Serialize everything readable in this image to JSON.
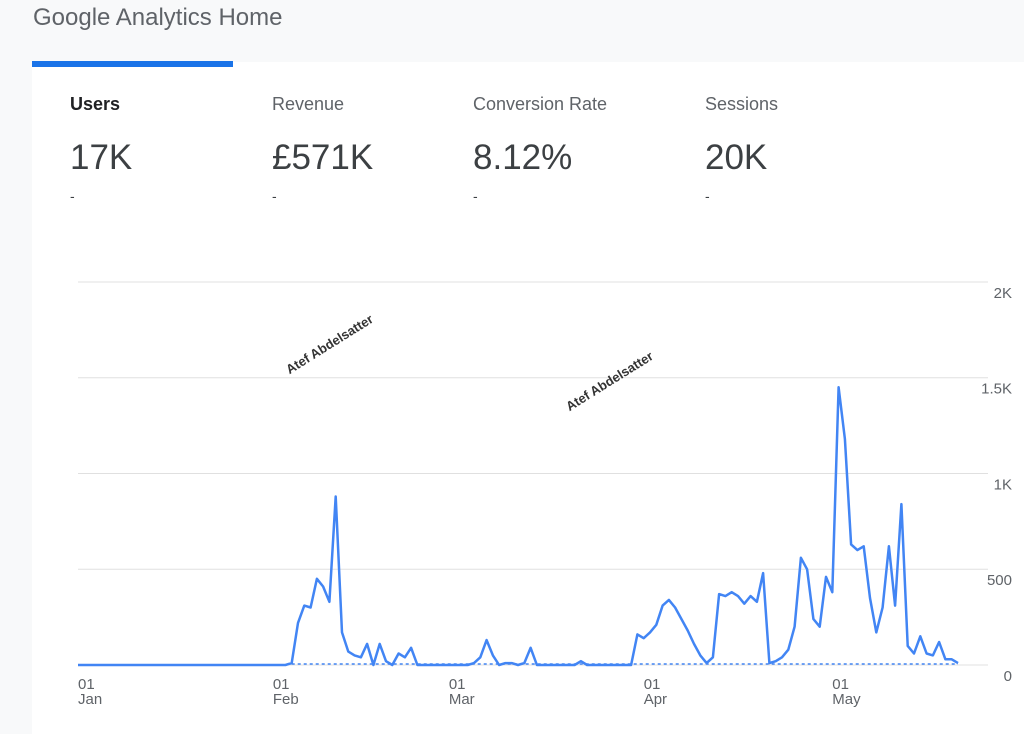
{
  "header": {
    "title": "Google Analytics Home"
  },
  "metrics": [
    {
      "label": "Users",
      "value": "17K",
      "change": "-"
    },
    {
      "label": "Revenue",
      "value": "£571K",
      "change": "-"
    },
    {
      "label": "Conversion Rate",
      "value": "8.12%",
      "change": "-"
    },
    {
      "label": "Sessions",
      "value": "20K",
      "change": "-"
    }
  ],
  "watermarks": [
    "Atef Abdelsatter",
    "Atef Abdelsatter"
  ],
  "chart_data": {
    "type": "line",
    "color": "#4285f4",
    "grid": true,
    "ylim": [
      0,
      2000
    ],
    "yticks": [
      0,
      500,
      {
        "value": 1000,
        "label": "1K"
      },
      {
        "value": 1500,
        "label": "1.5K"
      },
      {
        "value": 2000,
        "label": "2K"
      }
    ],
    "categories": [
      "01 Jan",
      null,
      null,
      null,
      null,
      null,
      null,
      null,
      null,
      null,
      null,
      null,
      null,
      null,
      null,
      null,
      null,
      null,
      null,
      null,
      null,
      null,
      null,
      null,
      null,
      null,
      null,
      null,
      null,
      null,
      null,
      "01 Feb",
      null,
      null,
      null,
      null,
      null,
      null,
      null,
      null,
      null,
      null,
      null,
      null,
      null,
      null,
      null,
      null,
      null,
      null,
      null,
      null,
      null,
      null,
      null,
      null,
      null,
      null,
      null,
      "01 Mar",
      null,
      null,
      null,
      null,
      null,
      null,
      null,
      null,
      null,
      null,
      null,
      null,
      null,
      null,
      null,
      null,
      null,
      null,
      null,
      null,
      null,
      null,
      null,
      null,
      null,
      null,
      null,
      null,
      null,
      null,
      "01 Apr",
      null,
      null,
      null,
      null,
      null,
      null,
      null,
      null,
      null,
      null,
      null,
      null,
      null,
      null,
      null,
      null,
      null,
      null,
      null,
      null,
      null,
      null,
      null,
      null,
      null,
      null,
      null,
      null,
      null,
      "01 May",
      null,
      null,
      null,
      null,
      null,
      null,
      null,
      null,
      null,
      null,
      null,
      null,
      null,
      null,
      null,
      null,
      null,
      null,
      null,
      null
    ],
    "values": [
      0,
      0,
      0,
      0,
      0,
      0,
      0,
      0,
      0,
      0,
      0,
      0,
      0,
      0,
      0,
      0,
      0,
      0,
      0,
      0,
      0,
      0,
      0,
      0,
      0,
      0,
      0,
      0,
      0,
      0,
      0,
      0,
      0,
      0,
      10,
      220,
      310,
      300,
      450,
      410,
      330,
      880,
      170,
      70,
      50,
      40,
      110,
      0,
      110,
      20,
      0,
      60,
      40,
      90,
      0,
      0,
      0,
      0,
      0,
      0,
      0,
      0,
      0,
      10,
      40,
      130,
      50,
      0,
      10,
      10,
      0,
      10,
      90,
      0,
      0,
      0,
      0,
      0,
      0,
      0,
      20,
      0,
      0,
      0,
      0,
      0,
      0,
      0,
      0,
      160,
      140,
      170,
      210,
      310,
      340,
      300,
      240,
      180,
      110,
      50,
      10,
      40,
      370,
      360,
      380,
      360,
      320,
      360,
      330,
      480,
      10,
      20,
      40,
      80,
      200,
      560,
      500,
      240,
      200,
      460,
      380,
      1450,
      1180,
      630,
      600,
      620,
      350,
      170,
      300,
      620,
      310,
      840,
      100,
      60,
      150,
      60,
      50,
      120,
      30,
      30,
      10
    ]
  }
}
